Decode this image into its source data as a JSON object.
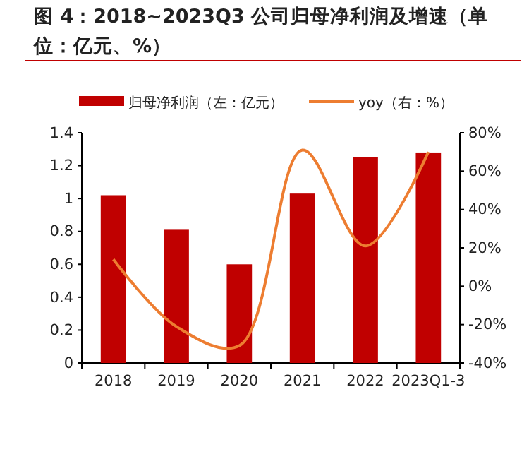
{
  "chart_data": {
    "type": "bar",
    "title": "图 4：2018~2023Q3 公司归母净利润及增速（单位：亿元、%）",
    "categories": [
      "2018",
      "2019",
      "2020",
      "2021",
      "2022",
      "2023Q1-3"
    ],
    "series": [
      {
        "name": "归母净利润（左：亿元）",
        "color": "#c00000",
        "values": [
          1.02,
          0.81,
          0.6,
          1.03,
          1.25,
          1.28
        ]
      },
      {
        "name": "yoy（右：%）",
        "type": "line",
        "axis": "y2",
        "color": "#ed7d31",
        "values": [
          14,
          -21,
          -31,
          71,
          21,
          70
        ]
      }
    ],
    "ylim": [
      0,
      1.4
    ],
    "yticks": [
      0,
      0.2,
      0.4,
      0.6,
      0.8,
      1,
      1.2,
      1.4
    ],
    "y2lim": [
      -40,
      80
    ],
    "y2ticks": [
      {
        "value": -40,
        "label": "-40%"
      },
      {
        "value": -20,
        "label": "-20%"
      },
      {
        "value": 0,
        "label": "0%"
      },
      {
        "value": 20,
        "label": "20%"
      },
      {
        "value": 40,
        "label": "40%"
      },
      {
        "value": 60,
        "label": "60%"
      },
      {
        "value": 80,
        "label": "80%"
      }
    ],
    "legend": "top",
    "grid": false,
    "marker": "none",
    "line_style": "solid"
  }
}
